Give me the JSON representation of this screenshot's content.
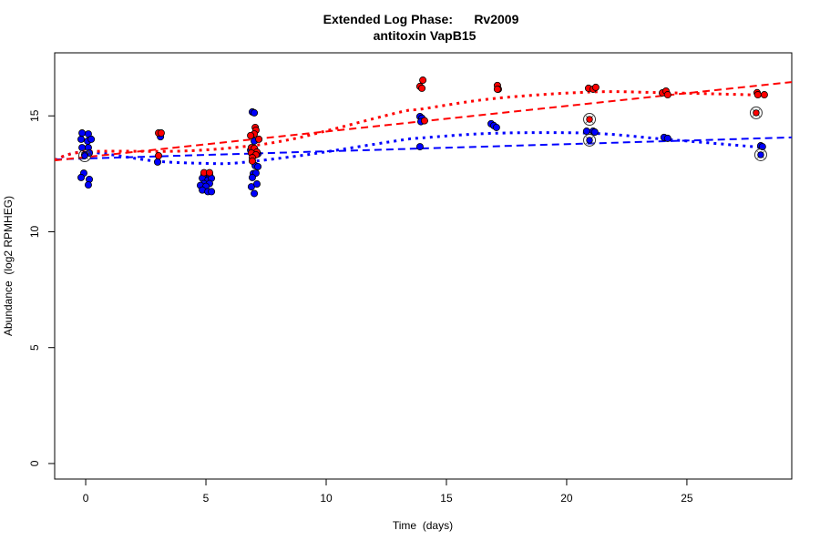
{
  "chart_data": {
    "type": "scatter",
    "title": "Extended Log Phase:      Rv2009",
    "subtitle": "antitoxin VapB15",
    "xlabel": "Time  (days)",
    "ylabel": "Abundance  (log2 RPMHEG)",
    "xlim": [
      -1.29,
      29.36
    ],
    "ylim": [
      -0.67,
      17.72
    ],
    "xticks": [
      0,
      5,
      10,
      15,
      20,
      25
    ],
    "yticks": [
      0,
      5,
      10,
      15
    ],
    "grid": false,
    "colors": {
      "red": "#ff0000",
      "blue": "#0000ff"
    },
    "series": [
      {
        "color": "#0000ff",
        "points": [
          [
            -0.15,
            14.26
          ],
          [
            0.11,
            14.22
          ],
          [
            -0.19,
            13.99
          ],
          [
            0.08,
            13.91
          ],
          [
            0.23,
            13.99
          ],
          [
            -0.15,
            13.63
          ],
          [
            0.11,
            13.63
          ],
          [
            0.15,
            13.4
          ],
          [
            -0.04,
            13.32
          ],
          [
            -0.08,
            12.53
          ],
          [
            -0.19,
            12.34
          ],
          [
            0.15,
            12.26
          ],
          [
            0.11,
            12.02
          ],
          [
            3.11,
            14.1
          ],
          [
            2.99,
            13.01
          ],
          [
            4.92,
            12.47
          ],
          [
            5.15,
            12.47
          ],
          [
            4.85,
            12.31
          ],
          [
            5.08,
            12.23
          ],
          [
            5.23,
            12.31
          ],
          [
            4.92,
            12.08
          ],
          [
            5.15,
            12.08
          ],
          [
            4.77,
            12.0
          ],
          [
            5.0,
            11.96
          ],
          [
            4.85,
            11.8
          ],
          [
            5.08,
            11.73
          ],
          [
            5.23,
            11.73
          ],
          [
            6.93,
            15.17
          ],
          [
            7.01,
            15.13
          ],
          [
            7.01,
            13.91
          ],
          [
            6.86,
            13.52
          ],
          [
            7.16,
            13.36
          ],
          [
            7.05,
            12.85
          ],
          [
            7.16,
            12.81
          ],
          [
            6.97,
            12.51
          ],
          [
            7.08,
            12.53
          ],
          [
            6.93,
            12.34
          ],
          [
            6.89,
            11.94
          ],
          [
            7.12,
            12.06
          ],
          [
            7.01,
            11.65
          ],
          [
            13.9,
            14.97
          ],
          [
            13.98,
            14.9
          ],
          [
            13.94,
            14.75
          ],
          [
            13.9,
            13.67
          ],
          [
            16.86,
            14.66
          ],
          [
            16.97,
            14.58
          ],
          [
            17.08,
            14.5
          ],
          [
            20.83,
            14.34
          ],
          [
            21.1,
            14.34
          ],
          [
            21.17,
            14.3
          ],
          [
            24.05,
            14.07
          ],
          [
            24.2,
            14.03
          ],
          [
            28.07,
            13.71
          ],
          [
            28.14,
            13.67
          ]
        ],
        "highlighted": [
          [
            -0.04,
            13.28
          ],
          [
            20.95,
            13.95
          ],
          [
            28.07,
            13.32
          ]
        ],
        "linear_fit": [
          [
            -1.29,
            13.12
          ],
          [
            29.36,
            14.07
          ]
        ],
        "smooth": [
          [
            -1.29,
            13.1
          ],
          [
            0,
            13.44
          ],
          [
            2.9,
            13.05
          ],
          [
            5,
            12.95
          ],
          [
            6.3,
            12.97
          ],
          [
            8.6,
            13.24
          ],
          [
            10,
            13.45
          ],
          [
            13.1,
            13.95
          ],
          [
            14,
            14.05
          ],
          [
            17,
            14.25
          ],
          [
            21,
            14.25
          ],
          [
            24,
            14.0
          ],
          [
            28,
            13.65
          ]
        ]
      },
      {
        "color": "#ff0000",
        "points": [
          [
            3.03,
            14.26
          ],
          [
            3.14,
            14.26
          ],
          [
            3.03,
            13.28
          ],
          [
            4.92,
            12.55
          ],
          [
            5.15,
            12.55
          ],
          [
            7.05,
            14.5
          ],
          [
            7.08,
            14.38
          ],
          [
            7.01,
            14.22
          ],
          [
            6.86,
            14.15
          ],
          [
            7.2,
            13.99
          ],
          [
            6.89,
            13.63
          ],
          [
            7.01,
            13.6
          ],
          [
            7.12,
            13.44
          ],
          [
            6.89,
            13.4
          ],
          [
            7.08,
            13.32
          ],
          [
            6.93,
            13.2
          ],
          [
            6.93,
            13.05
          ],
          [
            14.02,
            16.54
          ],
          [
            13.9,
            16.27
          ],
          [
            13.98,
            16.19
          ],
          [
            14.09,
            14.79
          ],
          [
            17.12,
            16.31
          ],
          [
            17.16,
            16.15
          ],
          [
            17.12,
            16.15
          ],
          [
            20.91,
            16.19
          ],
          [
            21.1,
            16.15
          ],
          [
            21.21,
            16.23
          ],
          [
            23.98,
            15.99
          ],
          [
            24.13,
            16.07
          ],
          [
            24.2,
            15.91
          ],
          [
            27.92,
            16.0
          ],
          [
            27.95,
            15.91
          ],
          [
            28.22,
            15.91
          ]
        ],
        "highlighted": [
          [
            20.95,
            14.85
          ],
          [
            27.88,
            15.13
          ]
        ],
        "linear_fit": [
          [
            -1.29,
            13.08
          ],
          [
            29.36,
            16.46
          ]
        ],
        "smooth": [
          [
            -1.29,
            13.1
          ],
          [
            0,
            13.45
          ],
          [
            4,
            13.48
          ],
          [
            6.8,
            13.7
          ],
          [
            8.6,
            14.0
          ],
          [
            10,
            14.35
          ],
          [
            13.1,
            15.17
          ],
          [
            14,
            15.3
          ],
          [
            17,
            15.75
          ],
          [
            21,
            16.03
          ],
          [
            24,
            16.0
          ],
          [
            28,
            15.9
          ]
        ]
      }
    ]
  }
}
